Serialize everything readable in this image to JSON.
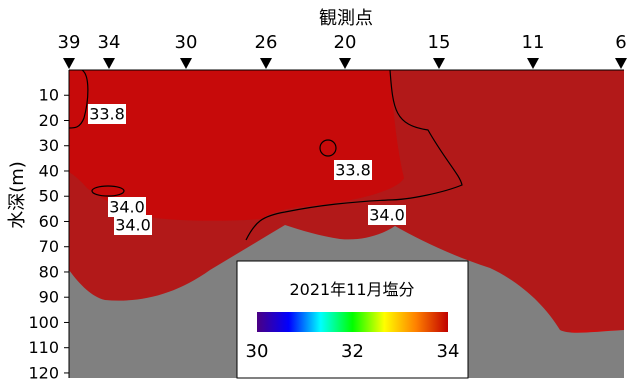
{
  "chart_data": {
    "type": "heatmap",
    "title": "観測点",
    "xlabel": "",
    "ylabel": "水深(m)",
    "x_stations": [
      "39",
      "34",
      "30",
      "26",
      "20",
      "15",
      "11",
      "6"
    ],
    "y_ticks": [
      10,
      20,
      30,
      40,
      50,
      60,
      70,
      80,
      90,
      100,
      110,
      120
    ],
    "ylim": [
      0,
      122
    ],
    "y_direction": "down",
    "contour_labels": [
      {
        "text": "33.8",
        "station": "39-34",
        "depth": 23
      },
      {
        "text": "33.8",
        "station": "20",
        "depth": 42
      },
      {
        "text": "34.0",
        "station": "34",
        "depth": 55
      },
      {
        "text": "34.0",
        "station": "34",
        "depth": 63
      },
      {
        "text": "34.0",
        "station": "20-15",
        "depth": 60
      }
    ],
    "colorbar": {
      "title": "2021年11月塩分",
      "min": 30,
      "max": 34,
      "ticks": [
        "30",
        "32",
        "34"
      ],
      "colors": [
        "#4b0082",
        "#0000ff",
        "#00ffff",
        "#00ff00",
        "#ffff00",
        "#ff8000",
        "#c00000"
      ]
    },
    "colors": {
      "lower_band": "#b21919",
      "upper_band": "#c70a0a",
      "deep_band": "#cc1010",
      "seabed": "#808080"
    },
    "grid": false,
    "legend_placement": "bottom-center"
  }
}
